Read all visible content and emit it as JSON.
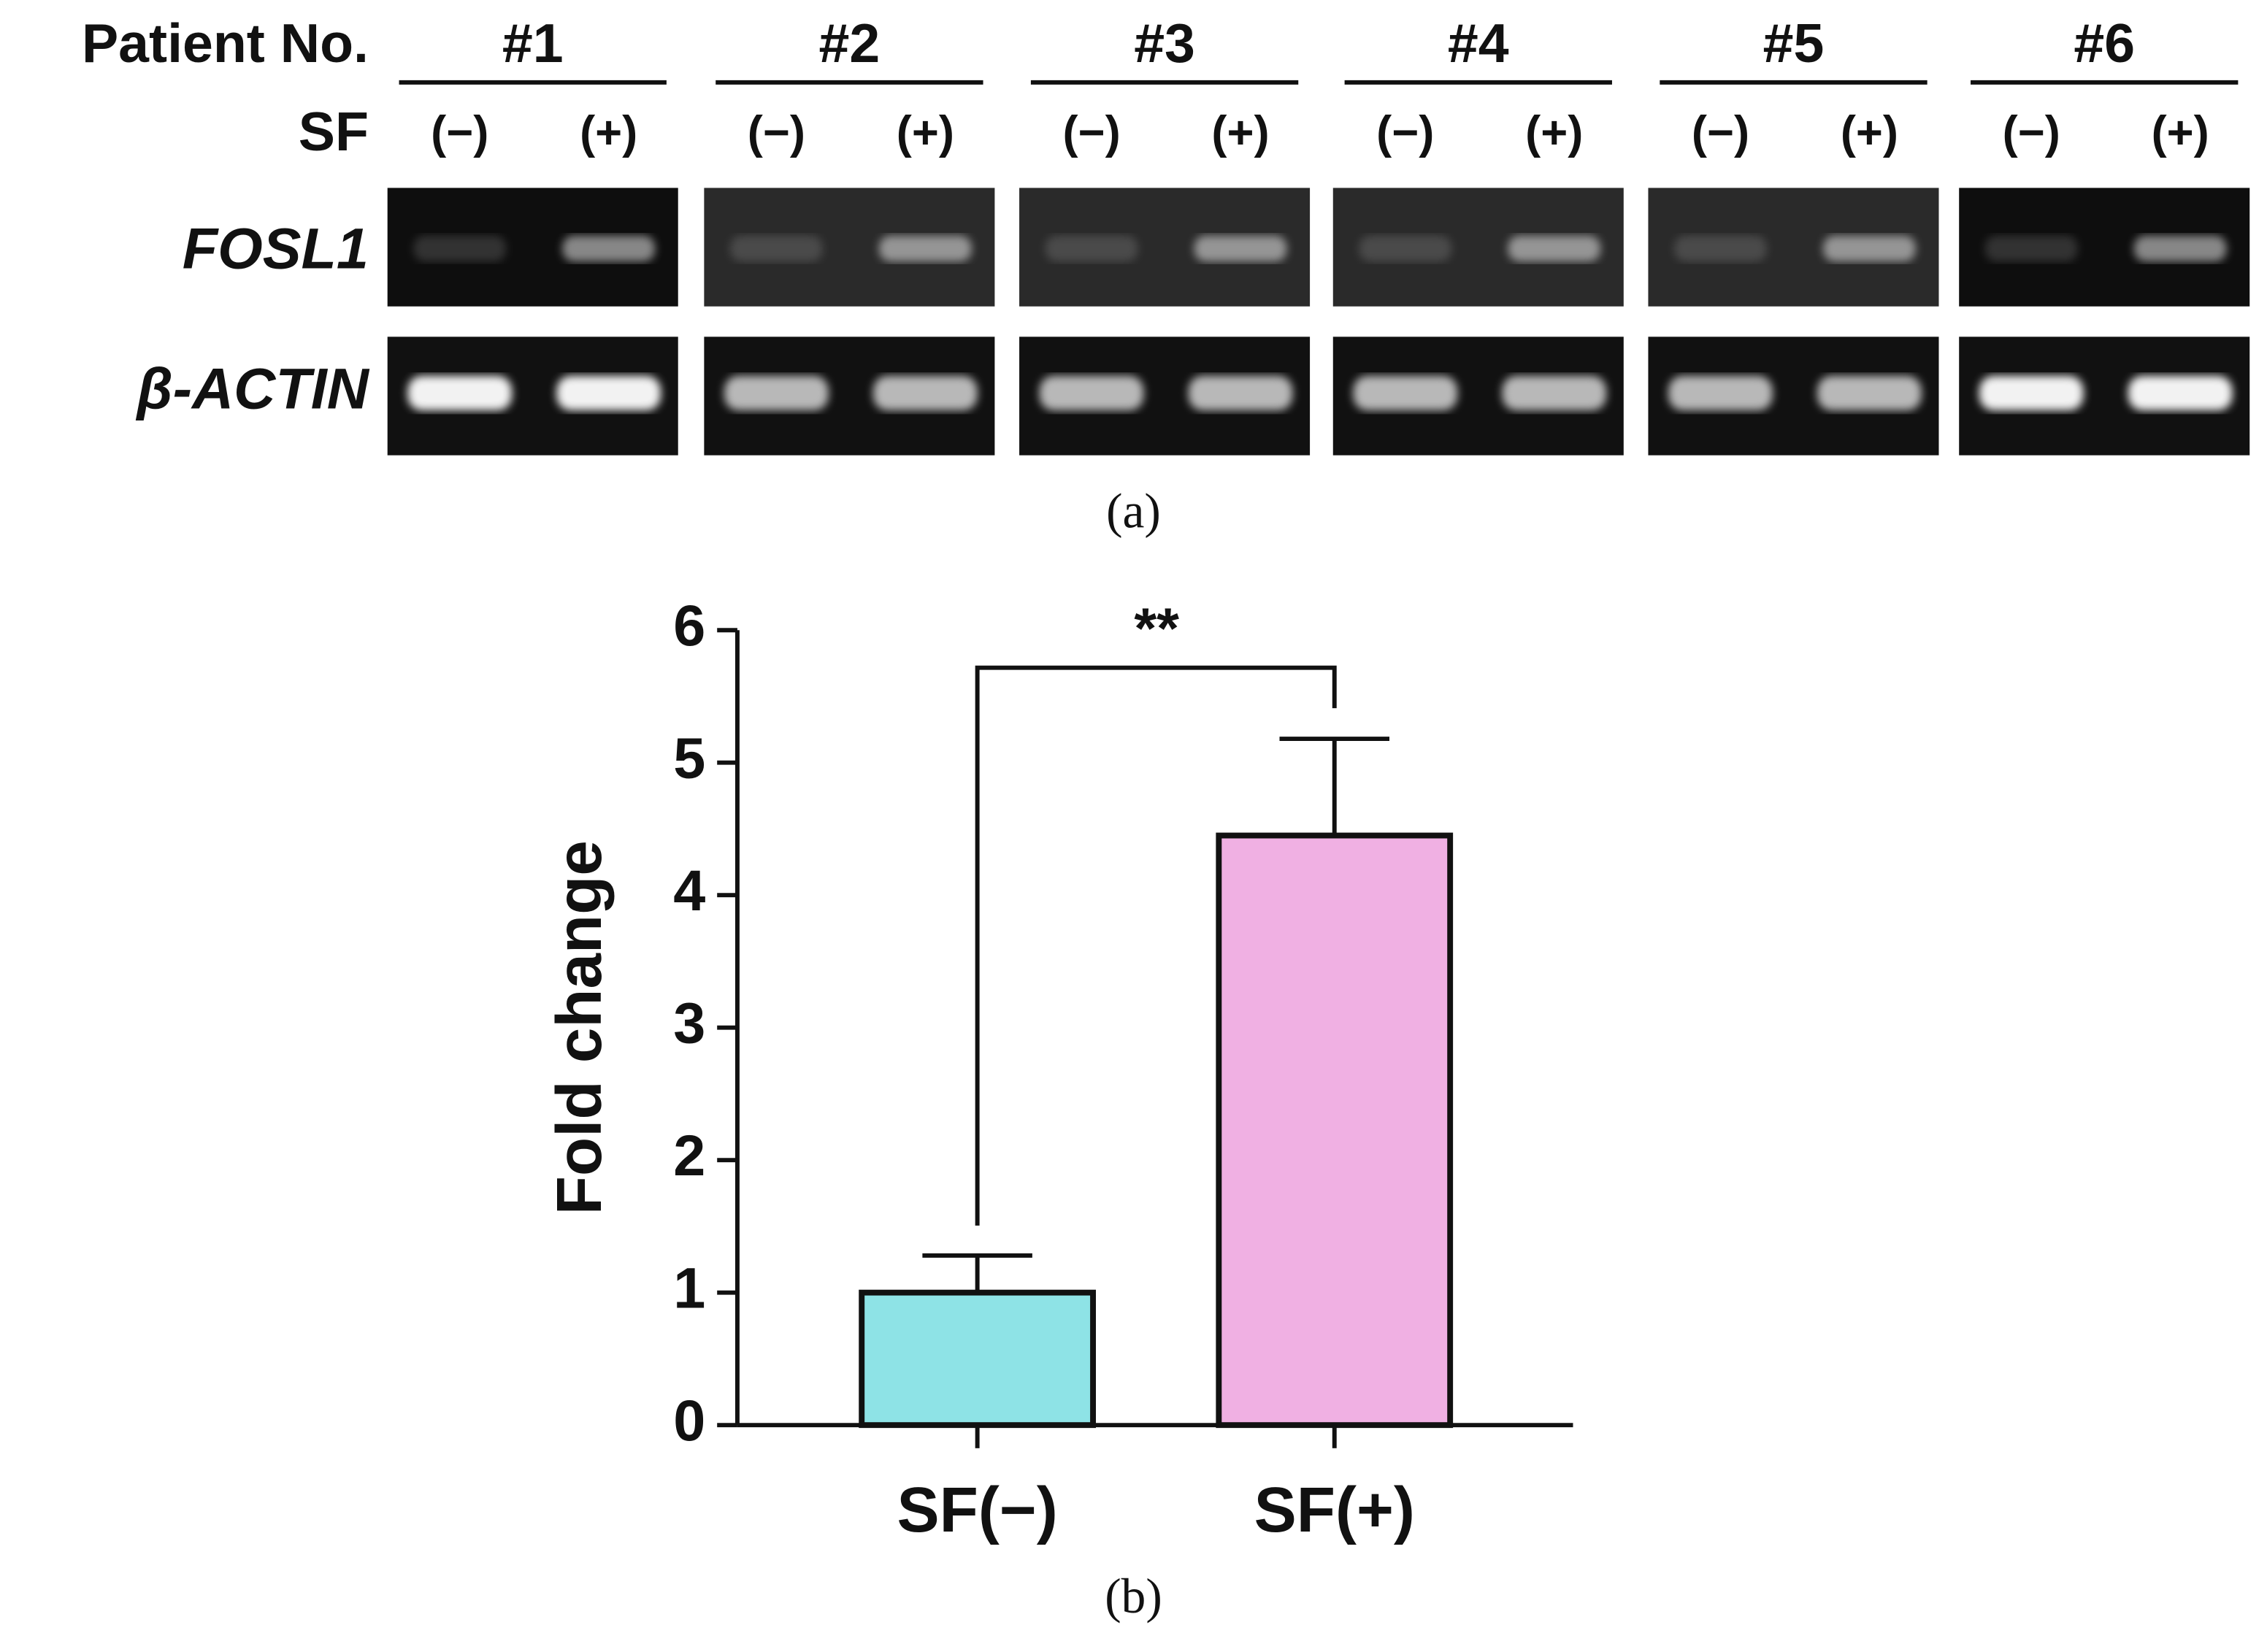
{
  "gel": {
    "row_header": "Patient No.",
    "treatment_header": "SF",
    "patients": [
      "#1",
      "#2",
      "#3",
      "#4",
      "#5",
      "#6"
    ],
    "lanes": [
      "(−)",
      "(+)"
    ],
    "genes": [
      "FOSL1",
      "β-ACTIN"
    ],
    "caption": "(a)"
  },
  "chart_data": {
    "type": "bar",
    "ylabel": "Fold change",
    "categories": [
      "SF(−)",
      "SF(+)"
    ],
    "values": [
      1.0,
      4.45
    ],
    "errors": [
      0.28,
      0.73
    ],
    "colors": [
      "#8ee3e6",
      "#f0b0e3"
    ],
    "ylim": [
      0,
      6
    ],
    "yticks": [
      0,
      1,
      2,
      3,
      4,
      5,
      6
    ],
    "annotation": "**",
    "caption": "(b)"
  }
}
